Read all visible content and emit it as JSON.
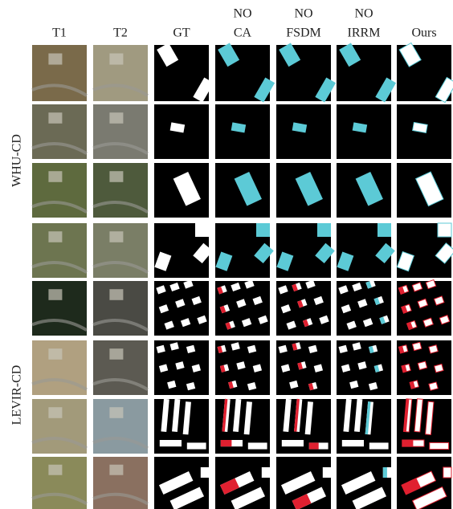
{
  "columns": [
    [
      "T1"
    ],
    [
      "T2"
    ],
    [
      "GT"
    ],
    [
      "NO",
      "CA"
    ],
    [
      "NO",
      "FSDM"
    ],
    [
      "NO",
      "IRRM"
    ],
    [
      "Ours"
    ]
  ],
  "row_groups": [
    "WHU-CD",
    "LEVIR-CD"
  ]
}
